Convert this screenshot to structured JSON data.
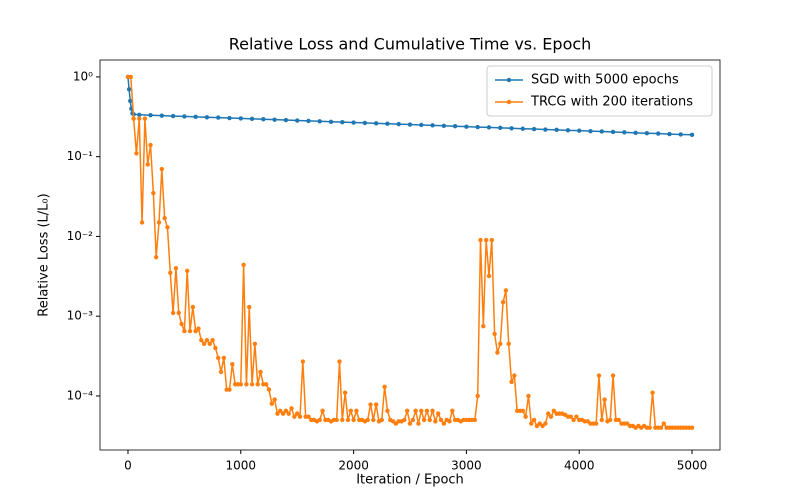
{
  "chart_data": {
    "type": "line",
    "title": "Relative Loss and Cumulative Time vs. Epoch",
    "xlabel": "Iteration / Epoch",
    "ylabel": "Relative Loss (L/L₀)",
    "xlim": [
      -248,
      5248
    ],
    "ylim": [
      2.1e-05,
      1.63
    ],
    "log_y": true,
    "xticks": [
      0,
      1000,
      2000,
      3000,
      4000,
      5000
    ],
    "yticks": [
      {
        "value": 1,
        "label": "10⁰"
      },
      {
        "value": 0.1,
        "label": "10⁻¹"
      },
      {
        "value": 0.01,
        "label": "10⁻²"
      },
      {
        "value": 0.001,
        "label": "10⁻³"
      },
      {
        "value": 0.0001,
        "label": "10⁻⁴"
      }
    ],
    "legend": "upper-right",
    "series": [
      {
        "name": "SGD with 5000 epochs",
        "color": "#1f77b4",
        "x": [
          0,
          10,
          20,
          30,
          40,
          50,
          100,
          200,
          300,
          400,
          500,
          600,
          700,
          800,
          900,
          1000,
          1100,
          1200,
          1300,
          1400,
          1500,
          1600,
          1700,
          1800,
          1900,
          2000,
          2100,
          2200,
          2300,
          2400,
          2500,
          2600,
          2700,
          2800,
          2900,
          3000,
          3100,
          3200,
          3300,
          3400,
          3500,
          3600,
          3700,
          3800,
          3900,
          4000,
          4100,
          4200,
          4300,
          4400,
          4500,
          4600,
          4700,
          4800,
          4900,
          5000
        ],
        "values": [
          1.0,
          0.7,
          0.5,
          0.4,
          0.35,
          0.34,
          0.335,
          0.331,
          0.327,
          0.323,
          0.32,
          0.316,
          0.312,
          0.309,
          0.305,
          0.302,
          0.298,
          0.295,
          0.291,
          0.288,
          0.284,
          0.281,
          0.278,
          0.274,
          0.271,
          0.268,
          0.265,
          0.262,
          0.259,
          0.256,
          0.253,
          0.25,
          0.247,
          0.244,
          0.241,
          0.238,
          0.235,
          0.233,
          0.23,
          0.227,
          0.224,
          0.222,
          0.219,
          0.217,
          0.214,
          0.212,
          0.209,
          0.207,
          0.204,
          0.202,
          0.199,
          0.197,
          0.195,
          0.192,
          0.19,
          0.188
        ]
      },
      {
        "name": "TRCG with 200 iterations",
        "color": "#ff7f0e",
        "x": [
          0,
          25,
          50,
          75,
          100,
          125,
          150,
          175,
          200,
          225,
          250,
          275,
          300,
          325,
          350,
          375,
          400,
          425,
          450,
          475,
          500,
          525,
          550,
          575,
          600,
          625,
          650,
          675,
          700,
          725,
          750,
          775,
          800,
          825,
          850,
          875,
          900,
          925,
          950,
          975,
          1000,
          1025,
          1050,
          1075,
          1100,
          1125,
          1150,
          1175,
          1200,
          1225,
          1250,
          1275,
          1300,
          1325,
          1350,
          1375,
          1400,
          1425,
          1450,
          1475,
          1500,
          1525,
          1550,
          1575,
          1600,
          1625,
          1650,
          1675,
          1700,
          1725,
          1750,
          1775,
          1800,
          1825,
          1850,
          1875,
          1900,
          1925,
          1950,
          1975,
          2000,
          2025,
          2050,
          2075,
          2100,
          2125,
          2150,
          2175,
          2200,
          2225,
          2250,
          2275,
          2300,
          2325,
          2350,
          2375,
          2400,
          2425,
          2450,
          2475,
          2500,
          2525,
          2550,
          2575,
          2600,
          2625,
          2650,
          2675,
          2700,
          2725,
          2750,
          2775,
          2800,
          2825,
          2850,
          2875,
          2900,
          2925,
          2950,
          2975,
          3000,
          3025,
          3050,
          3075,
          3100,
          3125,
          3150,
          3175,
          3200,
          3225,
          3250,
          3275,
          3300,
          3325,
          3350,
          3375,
          3400,
          3425,
          3450,
          3475,
          3500,
          3525,
          3550,
          3575,
          3600,
          3625,
          3650,
          3675,
          3700,
          3725,
          3750,
          3775,
          3800,
          3825,
          3850,
          3875,
          3900,
          3925,
          3950,
          3975,
          4000,
          4025,
          4050,
          4075,
          4100,
          4125,
          4150,
          4175,
          4200,
          4225,
          4250,
          4275,
          4300,
          4325,
          4350,
          4375,
          4400,
          4425,
          4450,
          4475,
          4500,
          4525,
          4550,
          4575,
          4600,
          4625,
          4650,
          4675,
          4700,
          4725,
          4750,
          4775,
          4800,
          4825,
          4850,
          4875,
          4900,
          4925,
          4950,
          4975,
          5000
        ],
        "values": [
          1.0,
          1.0,
          0.3,
          0.11,
          0.3,
          0.015,
          0.3,
          0.08,
          0.14,
          0.035,
          0.0055,
          0.015,
          0.07,
          0.017,
          0.013,
          0.0035,
          0.0011,
          0.004,
          0.0011,
          0.0008,
          0.00065,
          0.0037,
          0.00065,
          0.0013,
          0.00065,
          0.0007,
          0.0005,
          0.00045,
          0.0005,
          0.00045,
          0.0005,
          0.0004,
          0.0003,
          0.0002,
          0.0003,
          0.00012,
          0.00012,
          0.00025,
          0.00014,
          0.00014,
          0.00014,
          0.0044,
          0.00014,
          0.0013,
          0.00014,
          0.00045,
          0.00014,
          0.0002,
          0.00014,
          0.00014,
          0.00012,
          8e-05,
          9e-05,
          6e-05,
          6.5e-05,
          6e-05,
          6.5e-05,
          6e-05,
          7e-05,
          5.5e-05,
          6e-05,
          5.5e-05,
          0.00027,
          5.5e-05,
          5.5e-05,
          5e-05,
          5e-05,
          4.8e-05,
          5e-05,
          6.5e-05,
          5e-05,
          5e-05,
          4.8e-05,
          5e-05,
          5e-05,
          0.00027,
          5e-05,
          0.00011,
          5e-05,
          6.5e-05,
          5e-05,
          6.5e-05,
          5e-05,
          5e-05,
          4.8e-05,
          5e-05,
          7.8e-05,
          5e-05,
          7.8e-05,
          4.8e-05,
          5e-05,
          0.00013,
          6.5e-05,
          5e-05,
          4.8e-05,
          4.5e-05,
          4.8e-05,
          4.8e-05,
          5e-05,
          6.5e-05,
          4.5e-05,
          5e-05,
          6.5e-05,
          4.5e-05,
          6.5e-05,
          5e-05,
          6.5e-05,
          5e-05,
          6.5e-05,
          4.8e-05,
          6e-05,
          5e-05,
          4.5e-05,
          5e-05,
          4.8e-05,
          6.5e-05,
          5e-05,
          5e-05,
          4.8e-05,
          5e-05,
          5e-05,
          5e-05,
          5e-05,
          5e-05,
          0.0001,
          0.009,
          0.00075,
          0.009,
          0.0032,
          0.009,
          0.0006,
          0.00035,
          0.00045,
          0.0015,
          0.0021,
          0.00045,
          0.00015,
          0.00018,
          6.5e-05,
          6.5e-05,
          6.5e-05,
          5.5e-05,
          0.0001,
          4.5e-05,
          5e-05,
          4.2e-05,
          4.5e-05,
          4.2e-05,
          4.5e-05,
          6e-05,
          5.5e-05,
          6.5e-05,
          6e-05,
          6e-05,
          6e-05,
          5.8e-05,
          5.5e-05,
          5.5e-05,
          5e-05,
          5.5e-05,
          5e-05,
          5e-05,
          4.8e-05,
          4.8e-05,
          4.5e-05,
          4.5e-05,
          4.5e-05,
          0.00018,
          5e-05,
          9e-05,
          4.8e-05,
          5e-05,
          0.00018,
          5e-05,
          5e-05,
          4.5e-05,
          4.5e-05,
          4.5e-05,
          4.2e-05,
          4.2e-05,
          4e-05,
          4.2e-05,
          4e-05,
          4.2e-05,
          4e-05,
          4e-05,
          0.00011,
          4e-05,
          4e-05,
          4e-05,
          4.5e-05,
          4e-05,
          4e-05,
          4e-05,
          4e-05,
          4e-05,
          4e-05,
          4e-05,
          4e-05,
          4e-05,
          4e-05
        ]
      }
    ]
  }
}
